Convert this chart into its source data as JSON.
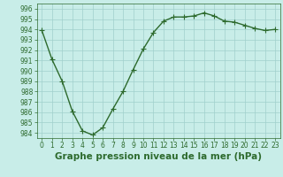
{
  "x": [
    0,
    1,
    2,
    3,
    4,
    5,
    6,
    7,
    8,
    9,
    10,
    11,
    12,
    13,
    14,
    15,
    16,
    17,
    18,
    19,
    20,
    21,
    22,
    23
  ],
  "y": [
    993.9,
    991.1,
    989.0,
    986.1,
    984.2,
    983.8,
    984.5,
    986.3,
    988.0,
    990.1,
    992.1,
    993.7,
    994.8,
    995.2,
    995.2,
    995.3,
    995.6,
    995.3,
    994.8,
    994.7,
    994.4,
    994.1,
    993.9,
    994.0
  ],
  "line_color": "#2d6a2d",
  "marker_color": "#2d6a2d",
  "bg_color": "#c8ede8",
  "grid_color": "#a0d0cc",
  "xlabel": "Graphe pression niveau de la mer (hPa)",
  "ylim": [
    983.5,
    996.5
  ],
  "xlim": [
    -0.5,
    23.5
  ],
  "yticks": [
    984,
    985,
    986,
    987,
    988,
    989,
    990,
    991,
    992,
    993,
    994,
    995,
    996
  ],
  "xticks": [
    0,
    1,
    2,
    3,
    4,
    5,
    6,
    7,
    8,
    9,
    10,
    11,
    12,
    13,
    14,
    15,
    16,
    17,
    18,
    19,
    20,
    21,
    22,
    23
  ],
  "tick_fontsize": 5.5,
  "xlabel_fontsize": 7.5,
  "linewidth": 1.0,
  "markersize": 2.5
}
